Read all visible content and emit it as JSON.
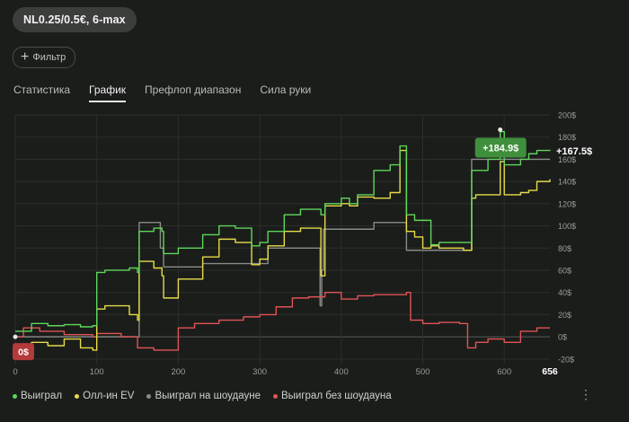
{
  "header": {
    "game_chip": "NL0.25/0.5€, 6-max",
    "filter_label": "Фильтр"
  },
  "tabs": [
    {
      "label": "Статистика",
      "active": false
    },
    {
      "label": "График",
      "active": true
    },
    {
      "label": "Префлоп диапазон",
      "active": false
    },
    {
      "label": "Сила руки",
      "active": false
    }
  ],
  "chart_data": {
    "type": "line",
    "xlim": [
      0,
      656
    ],
    "ylim": [
      -25,
      200
    ],
    "x_ticks": [
      0,
      100,
      200,
      300,
      400,
      500,
      600
    ],
    "x_end_label": "656",
    "y_ticks": [
      "200$",
      "180$",
      "160$",
      "140$",
      "120$",
      "100$",
      "80$",
      "60$",
      "40$",
      "20$",
      "0$",
      "-20$"
    ],
    "y_tick_values": [
      200,
      180,
      160,
      140,
      120,
      100,
      80,
      60,
      40,
      20,
      0,
      -20
    ],
    "grid": true,
    "legend_position": "bottom-left",
    "series": [
      {
        "name": "Выиграл",
        "color": "#5fd65a",
        "x": [
          0,
          20,
          40,
          60,
          80,
          95,
          100,
          110,
          140,
          150,
          152,
          170,
          180,
          182,
          200,
          230,
          250,
          270,
          290,
          300,
          310,
          330,
          350,
          375,
          380,
          400,
          410,
          420,
          440,
          460,
          472,
          480,
          490,
          500,
          510,
          520,
          550,
          560,
          565,
          580,
          595,
          600,
          620,
          630,
          640,
          656
        ],
        "y": [
          5,
          12,
          10,
          11,
          9,
          10,
          58,
          60,
          62,
          58,
          95,
          98,
          95,
          75,
          80,
          92,
          100,
          98,
          82,
          85,
          95,
          110,
          115,
          110,
          120,
          125,
          120,
          128,
          150,
          155,
          172,
          110,
          105,
          105,
          83,
          85,
          85,
          150,
          150,
          160,
          185,
          155,
          160,
          165,
          168,
          167.5
        ]
      },
      {
        "name": "Олл-ин EV",
        "color": "#e6dc48",
        "x": [
          0,
          20,
          40,
          60,
          80,
          95,
          100,
          110,
          140,
          150,
          152,
          170,
          180,
          182,
          200,
          230,
          250,
          270,
          290,
          300,
          310,
          330,
          350,
          375,
          380,
          400,
          410,
          420,
          440,
          460,
          472,
          480,
          490,
          500,
          510,
          520,
          550,
          560,
          565,
          580,
          595,
          600,
          620,
          630,
          640,
          656
        ],
        "y": [
          -10,
          -5,
          -8,
          -2,
          -10,
          -12,
          25,
          28,
          20,
          15,
          68,
          62,
          55,
          35,
          52,
          72,
          88,
          85,
          65,
          70,
          82,
          95,
          98,
          55,
          118,
          120,
          118,
          126,
          125,
          130,
          168,
          95,
          90,
          80,
          82,
          80,
          78,
          125,
          128,
          128,
          158,
          128,
          130,
          132,
          140,
          142
        ]
      },
      {
        "name": "Выиграл на шоудауне",
        "color": "#8a8c8a",
        "x": [
          0,
          100,
          150,
          152,
          175,
          178,
          180,
          182,
          200,
          230,
          250,
          270,
          300,
          310,
          330,
          350,
          372,
          374,
          376,
          378,
          400,
          420,
          440,
          460,
          470,
          480,
          500,
          520,
          540,
          560,
          580,
          600,
          620,
          640,
          656
        ],
        "y": [
          0,
          0,
          0,
          103,
          103,
          80,
          80,
          63,
          63,
          66,
          66,
          66,
          66,
          80,
          80,
          80,
          80,
          28,
          60,
          97,
          97,
          97,
          103,
          103,
          103,
          78,
          78,
          78,
          78,
          160,
          160,
          160,
          160,
          160,
          160
        ]
      },
      {
        "name": "Выиграл без шоудауна",
        "color": "#e05454",
        "x": [
          0,
          10,
          30,
          60,
          95,
          100,
          130,
          150,
          170,
          190,
          200,
          220,
          250,
          280,
          300,
          320,
          340,
          360,
          380,
          400,
          420,
          440,
          460,
          480,
          485,
          500,
          520,
          545,
          555,
          565,
          580,
          600,
          620,
          640,
          656
        ],
        "y": [
          0,
          8,
          5,
          2,
          0,
          3,
          0,
          -10,
          -12,
          -12,
          8,
          12,
          15,
          18,
          20,
          27,
          35,
          36,
          40,
          34,
          37,
          38,
          38,
          40,
          15,
          12,
          13,
          12,
          -10,
          -5,
          -2,
          -5,
          5,
          8,
          8
        ]
      }
    ],
    "annotations": {
      "peak_label": "+184.9$",
      "end_label": "+167.5$",
      "start_label": "0$"
    }
  }
}
